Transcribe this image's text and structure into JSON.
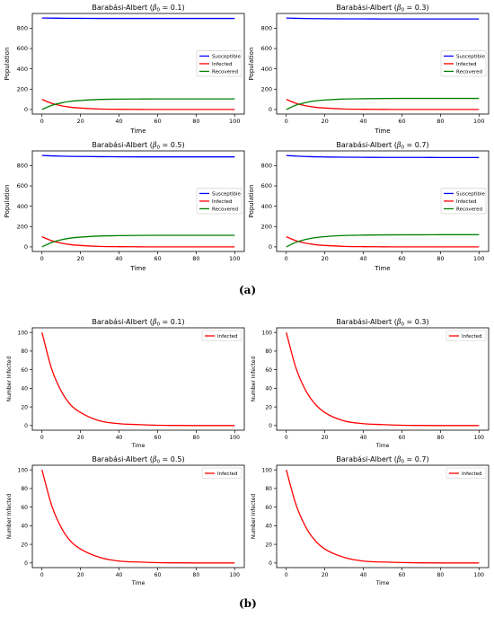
{
  "captions": {
    "a": "(a)",
    "b": "(b)"
  },
  "colors": {
    "susceptible": "#0000ff",
    "infected": "#ff0000",
    "recovered": "#008000"
  },
  "chart_data": [
    {
      "type": "line",
      "panel": "a",
      "title_prefix": "Barabási-Albert (",
      "title_beta": "0.1",
      "xlabel": "Time",
      "ylabel": "Population",
      "xlim": [
        -5,
        105
      ],
      "ylim": [
        -45,
        945
      ],
      "xticks": [
        "0",
        "20",
        "40",
        "60",
        "80",
        "100"
      ],
      "yticks": [
        "0",
        "200",
        "400",
        "600",
        "800"
      ],
      "legend": "center-right",
      "x": [
        0,
        5,
        10,
        15,
        20,
        30,
        40,
        50,
        60,
        70,
        80,
        90,
        100
      ],
      "series": [
        {
          "name": "Susceptible",
          "color": "#0000ff",
          "values": [
            900,
            899,
            898,
            897,
            897,
            896,
            896,
            896,
            896,
            896,
            896,
            896,
            896
          ]
        },
        {
          "name": "Infected",
          "color": "#ff0000",
          "values": [
            100,
            61,
            37,
            22,
            14,
            5,
            2,
            1,
            0,
            0,
            0,
            0,
            0
          ]
        },
        {
          "name": "Recovered",
          "color": "#008000",
          "values": [
            0,
            40,
            65,
            81,
            89,
            99,
            102,
            103,
            104,
            104,
            104,
            104,
            104
          ]
        }
      ]
    },
    {
      "type": "line",
      "panel": "a",
      "title_prefix": "Barabási-Albert (",
      "title_beta": "0.3",
      "xlabel": "Time",
      "ylabel": "Population",
      "xlim": [
        -5,
        105
      ],
      "ylim": [
        -45,
        945
      ],
      "xticks": [
        "0",
        "20",
        "40",
        "60",
        "80",
        "100"
      ],
      "yticks": [
        "0",
        "200",
        "400",
        "600",
        "800"
      ],
      "legend": "center-right",
      "x": [
        0,
        5,
        10,
        15,
        20,
        30,
        40,
        50,
        60,
        70,
        80,
        90,
        100
      ],
      "series": [
        {
          "name": "Susceptible",
          "color": "#0000ff",
          "values": [
            900,
            897,
            895,
            894,
            893,
            892,
            892,
            891,
            891,
            891,
            891,
            891,
            891
          ]
        },
        {
          "name": "Infected",
          "color": "#ff0000",
          "values": [
            100,
            61,
            37,
            22,
            14,
            5,
            2,
            1,
            0,
            0,
            0,
            0,
            0
          ]
        },
        {
          "name": "Recovered",
          "color": "#008000",
          "values": [
            0,
            42,
            68,
            84,
            93,
            103,
            106,
            108,
            109,
            109,
            109,
            109,
            109
          ]
        }
      ]
    },
    {
      "type": "line",
      "panel": "a",
      "title_prefix": "Barabási-Albert (",
      "title_beta": "0.5",
      "xlabel": "Time",
      "ylabel": "Population",
      "xlim": [
        -5,
        105
      ],
      "ylim": [
        -45,
        945
      ],
      "xticks": [
        "0",
        "20",
        "40",
        "60",
        "80",
        "100"
      ],
      "yticks": [
        "0",
        "200",
        "400",
        "600",
        "800"
      ],
      "legend": "center-right",
      "x": [
        0,
        5,
        10,
        15,
        20,
        30,
        40,
        50,
        60,
        70,
        80,
        90,
        100
      ],
      "series": [
        {
          "name": "Susceptible",
          "color": "#0000ff",
          "values": [
            900,
            896,
            893,
            891,
            890,
            888,
            887,
            886,
            886,
            886,
            886,
            886,
            886
          ]
        },
        {
          "name": "Infected",
          "color": "#ff0000",
          "values": [
            100,
            61,
            37,
            22,
            14,
            5,
            2,
            1,
            0,
            0,
            0,
            0,
            0
          ]
        },
        {
          "name": "Recovered",
          "color": "#008000",
          "values": [
            0,
            43,
            70,
            87,
            96,
            107,
            111,
            113,
            114,
            114,
            114,
            114,
            114
          ]
        }
      ]
    },
    {
      "type": "line",
      "panel": "a",
      "title_prefix": "Barabási-Albert (",
      "title_beta": "0.7",
      "xlabel": "Time",
      "ylabel": "Population",
      "xlim": [
        -5,
        105
      ],
      "ylim": [
        -45,
        945
      ],
      "xticks": [
        "0",
        "20",
        "40",
        "60",
        "80",
        "100"
      ],
      "yticks": [
        "0",
        "200",
        "400",
        "600",
        "800"
      ],
      "legend": "center-right",
      "x": [
        0,
        5,
        10,
        15,
        20,
        30,
        40,
        50,
        60,
        70,
        80,
        90,
        100
      ],
      "series": [
        {
          "name": "Susceptible",
          "color": "#0000ff",
          "values": [
            900,
            894,
            890,
            887,
            885,
            883,
            882,
            881,
            881,
            881,
            880,
            880,
            880
          ]
        },
        {
          "name": "Infected",
          "color": "#ff0000",
          "values": [
            100,
            61,
            37,
            22,
            14,
            5,
            2,
            1,
            0,
            0,
            0,
            0,
            0
          ]
        },
        {
          "name": "Recovered",
          "color": "#008000",
          "values": [
            0,
            45,
            73,
            91,
            101,
            112,
            116,
            118,
            119,
            119,
            120,
            120,
            120
          ]
        }
      ]
    },
    {
      "type": "line",
      "panel": "b",
      "title_prefix": "Barabási-Albert (",
      "title_beta": "0.1",
      "xlabel": "Time",
      "ylabel": "Number Infected",
      "xlim": [
        -5,
        105
      ],
      "ylim": [
        -5,
        105
      ],
      "xticks": [
        "0",
        "20",
        "40",
        "60",
        "80",
        "100"
      ],
      "yticks": [
        "0",
        "20",
        "40",
        "60",
        "80",
        "100"
      ],
      "legend": "top-right",
      "x": [
        0,
        5,
        10,
        15,
        20,
        30,
        40,
        50,
        60,
        70,
        80,
        90,
        100
      ],
      "series": [
        {
          "name": "Infected",
          "color": "#ff0000",
          "values": [
            100,
            61,
            37,
            22,
            14,
            5,
            2,
            1,
            0.3,
            0.1,
            0,
            0,
            0
          ]
        }
      ]
    },
    {
      "type": "line",
      "panel": "b",
      "title_prefix": "Barabási-Albert (",
      "title_beta": "0.3",
      "xlabel": "Time",
      "ylabel": "Number Infected",
      "xlim": [
        -5,
        105
      ],
      "ylim": [
        -5,
        105
      ],
      "xticks": [
        "0",
        "20",
        "40",
        "60",
        "80",
        "100"
      ],
      "yticks": [
        "0",
        "20",
        "40",
        "60",
        "80",
        "100"
      ],
      "legend": "top-right",
      "x": [
        0,
        5,
        10,
        15,
        20,
        30,
        40,
        50,
        60,
        70,
        80,
        90,
        100
      ],
      "series": [
        {
          "name": "Infected",
          "color": "#ff0000",
          "values": [
            100,
            62,
            38,
            23,
            14,
            5,
            2,
            1,
            0.3,
            0.1,
            0,
            0,
            0
          ]
        }
      ]
    },
    {
      "type": "line",
      "panel": "b",
      "title_prefix": "Barabási-Albert (",
      "title_beta": "0.5",
      "xlabel": "Time",
      "ylabel": "Number Infected",
      "xlim": [
        -5,
        105
      ],
      "ylim": [
        -5,
        105
      ],
      "xticks": [
        "0",
        "20",
        "40",
        "60",
        "80",
        "100"
      ],
      "yticks": [
        "0",
        "20",
        "40",
        "60",
        "80",
        "100"
      ],
      "legend": "top-right",
      "x": [
        0,
        5,
        10,
        15,
        20,
        30,
        40,
        50,
        60,
        70,
        80,
        90,
        100
      ],
      "series": [
        {
          "name": "Infected",
          "color": "#ff0000",
          "values": [
            100,
            62,
            38,
            23,
            15,
            6,
            2,
            1,
            0.3,
            0.1,
            0,
            0,
            0
          ]
        }
      ]
    },
    {
      "type": "line",
      "panel": "b",
      "title_prefix": "Barabási-Albert (",
      "title_beta": "0.7",
      "xlabel": "Time",
      "ylabel": "Number Infected",
      "xlim": [
        -5,
        105
      ],
      "ylim": [
        -5,
        105
      ],
      "xticks": [
        "0",
        "20",
        "40",
        "60",
        "80",
        "100"
      ],
      "yticks": [
        "0",
        "20",
        "40",
        "60",
        "80",
        "100"
      ],
      "legend": "top-right",
      "x": [
        0,
        5,
        10,
        15,
        20,
        30,
        40,
        50,
        60,
        70,
        80,
        90,
        100
      ],
      "series": [
        {
          "name": "Infected",
          "color": "#ff0000",
          "values": [
            100,
            63,
            39,
            24,
            15,
            6,
            2,
            1,
            0.4,
            0.1,
            0,
            0,
            0
          ]
        }
      ]
    }
  ]
}
